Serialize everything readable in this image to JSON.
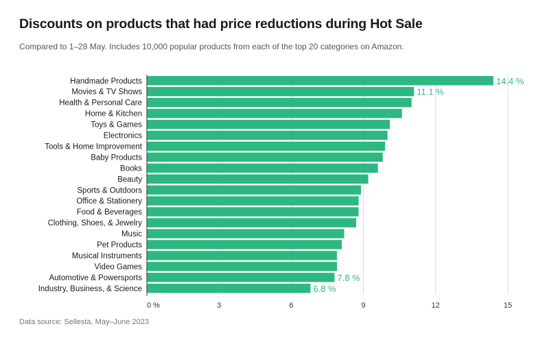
{
  "title": "Discounts on products that had price reductions during Hot Sale",
  "subtitle": "Compared to 1–28 May. Includes 10,000 popular products from each of the top 20 categories on Amazon.",
  "source": "Data source: Sellesta, May–June 2023",
  "colors": {
    "bar": "#2db882",
    "label": "#2db882",
    "grid": "#d9d9d9",
    "text": "#1a1a1a"
  },
  "chart_data": {
    "type": "bar",
    "orientation": "horizontal",
    "title": "Discounts on products that had price reductions during Hot Sale",
    "subtitle": "Compared to 1–28 May. Includes 10,000 popular products from each of the top 20 categories on Amazon.",
    "categories": [
      "Handmade Products",
      "Movies & TV Shows",
      "Health & Personal Care",
      "Home & Kitchen",
      "Toys & Games",
      "Electronics",
      "Tools & Home Improvement",
      "Baby Products",
      "Books",
      "Beauty",
      "Sports & Outdoors",
      "Office & Stationery",
      "Food & Beverages",
      "Clothing, Shoes, & Jewelry",
      "Music",
      "Pet Products",
      "Musical Instruments",
      "Video Games",
      "Automotive & Powersports",
      "Industry, Business, & Science"
    ],
    "values": [
      14.4,
      11.1,
      11.0,
      10.6,
      10.1,
      10.0,
      9.9,
      9.8,
      9.6,
      9.2,
      8.9,
      8.8,
      8.8,
      8.7,
      8.2,
      8.1,
      7.9,
      7.9,
      7.8,
      6.8
    ],
    "data_labels": [
      "14.4 %",
      "11.1 %",
      "",
      "",
      "",
      "",
      "",
      "",
      "",
      "",
      "",
      "",
      "",
      "",
      "",
      "",
      "",
      "",
      "7.8 %",
      "6.8 %"
    ],
    "x_ticks": [
      0,
      3,
      6,
      9,
      12,
      15
    ],
    "x_tick_labels": [
      "0 %",
      "3",
      "6",
      "9",
      "12",
      "15"
    ],
    "xlim": [
      0,
      15
    ],
    "xlabel": "",
    "ylabel": "",
    "grid": true
  }
}
